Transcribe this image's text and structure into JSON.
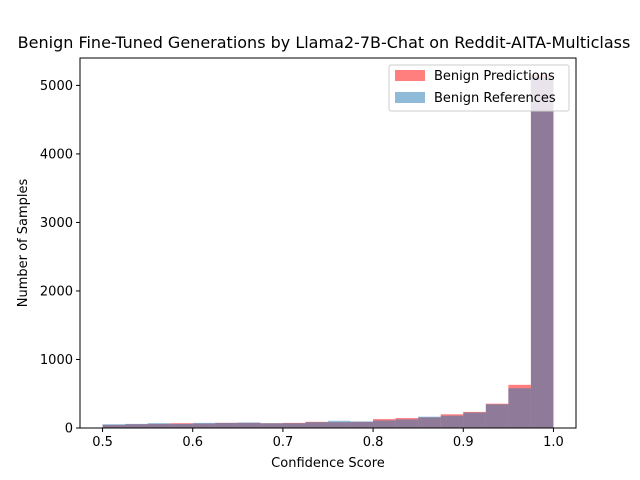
{
  "chart_data": {
    "type": "bar",
    "title": "Benign Fine-Tuned Generations by Llama2-7B-Chat on Reddit-AITA-Multiclass",
    "xlabel": "Confidence Score",
    "ylabel": "Number of Samples",
    "xlim": [
      0.475,
      1.025
    ],
    "ylim": [
      0,
      5400
    ],
    "xticks": [
      "0.5",
      "0.6",
      "0.7",
      "0.8",
      "0.9",
      "1.0"
    ],
    "yticks": [
      "0",
      "1000",
      "2000",
      "3000",
      "4000",
      "5000"
    ],
    "bin_edges": [
      0.5,
      0.525,
      0.55,
      0.575,
      0.6,
      0.625,
      0.65,
      0.675,
      0.7,
      0.725,
      0.75,
      0.775,
      0.8,
      0.825,
      0.85,
      0.875,
      0.9,
      0.925,
      0.95,
      0.975,
      1.0
    ],
    "legend_position": "upper right",
    "grid": false,
    "series": [
      {
        "name": "Benign Predictions",
        "color": "#ff0000",
        "alpha": 0.5,
        "values": [
          45,
          55,
          60,
          70,
          65,
          75,
          75,
          70,
          75,
          90,
          85,
          90,
          130,
          145,
          155,
          200,
          235,
          355,
          630,
          5150
        ]
      },
      {
        "name": "Benign References",
        "color": "#1f77b4",
        "alpha": 0.5,
        "values": [
          55,
          60,
          70,
          60,
          75,
          75,
          80,
          70,
          70,
          85,
          105,
          95,
          110,
          125,
          165,
          180,
          225,
          345,
          580,
          5130
        ]
      }
    ]
  }
}
